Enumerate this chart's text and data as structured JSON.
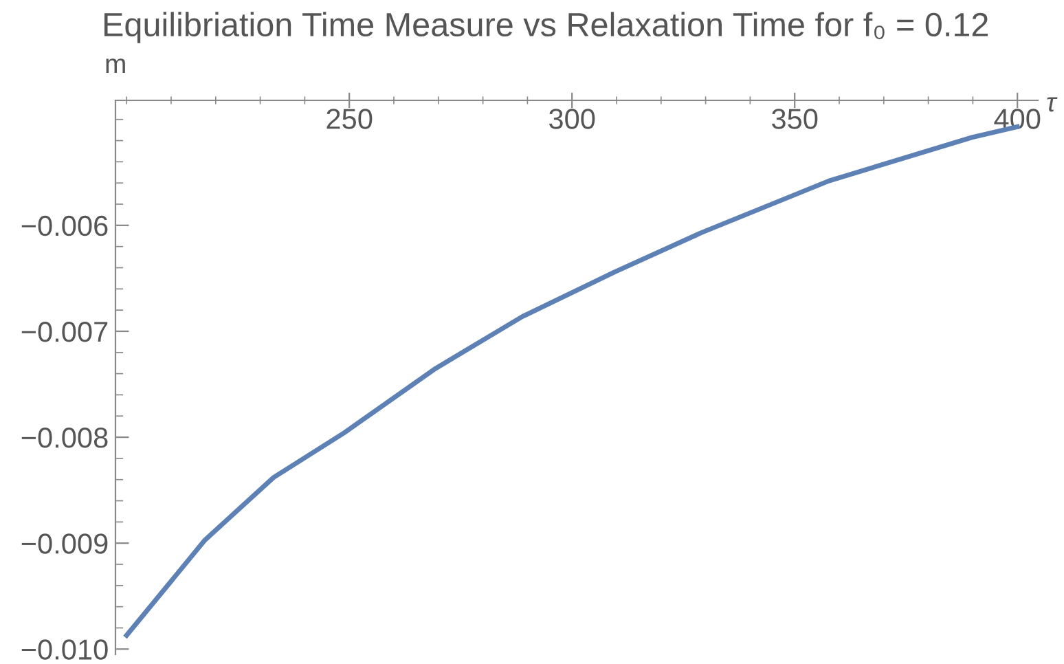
{
  "chart_data": {
    "type": "line",
    "title": "Equilibriation Time Measure vs Relaxation Time for f₀ = 0.12",
    "xlabel": "τ",
    "ylabel": "m",
    "x": [
      200,
      217.6,
      233,
      248.8,
      269.4,
      288.9,
      309.6,
      329,
      357.7,
      389.8,
      400
    ],
    "series": [
      {
        "color": "#5e81b5",
        "values": [
          -0.00987,
          -0.00897,
          -0.00838,
          -0.00796,
          -0.00735,
          -0.00686,
          -0.00644,
          -0.00607,
          -0.00558,
          -0.00517,
          -0.00507
        ]
      }
    ],
    "xlim": [
      197.5,
      404.6
    ],
    "ylim": [
      -0.01005,
      -0.00482
    ],
    "xticks": [
      250,
      300,
      350,
      400
    ],
    "yticks": [
      {
        "value": -0.006,
        "label": "−0.006"
      },
      {
        "value": -0.007,
        "label": "−0.007"
      },
      {
        "value": -0.008,
        "label": "−0.008"
      },
      {
        "value": -0.009,
        "label": "−0.009"
      },
      {
        "value": -0.01,
        "label": "−0.010"
      }
    ],
    "grid": false,
    "legend": false,
    "marker": "none",
    "line_style": "solid"
  }
}
